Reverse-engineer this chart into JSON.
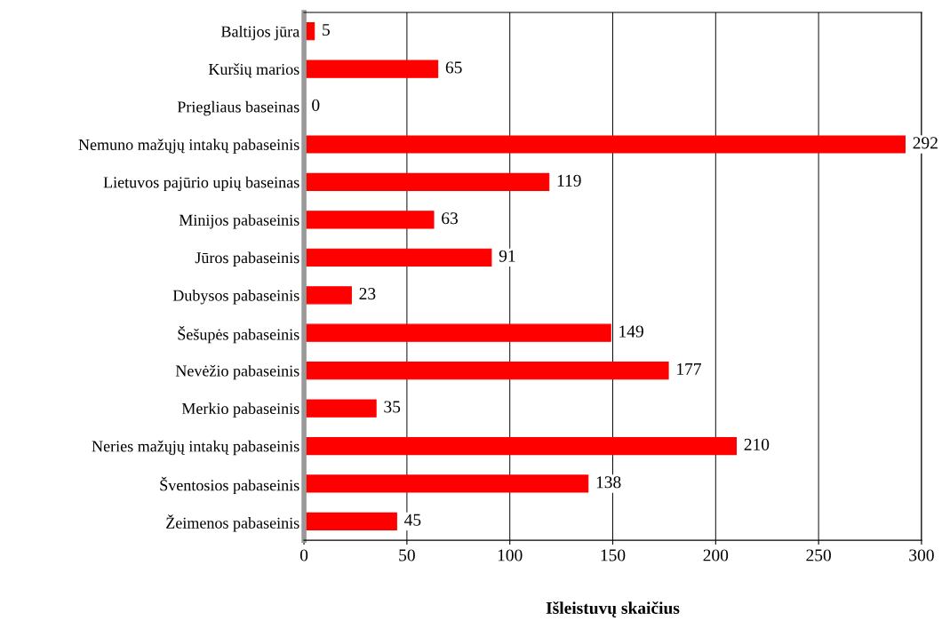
{
  "chart_data": {
    "type": "bar",
    "orientation": "horizontal",
    "xlabel": "Išleistuvų skaičius",
    "categories": [
      "Baltijos jūra",
      "Kuršių marios",
      "Priegliaus baseinas",
      "Nemuno mažųjų intakų pabaseinis",
      "Lietuvos pajūrio upių baseinas",
      "Minijos pabaseinis",
      "Jūros pabaseinis",
      "Dubysos pabaseinis",
      "Šešupės pabaseinis",
      "Nevėžio pabaseinis",
      "Merkio pabaseinis",
      "Neries mažųjų intakų pabaseinis",
      "Šventosios pabaseinis",
      "Žeimenos pabaseinis"
    ],
    "values": [
      5,
      65,
      0,
      292,
      119,
      63,
      91,
      23,
      149,
      177,
      35,
      210,
      138,
      45
    ],
    "color": "#ff0000",
    "xlim": [
      0,
      300
    ],
    "xticks": [
      0,
      50,
      100,
      150,
      200,
      250,
      300
    ],
    "grid": "x",
    "data_labels": true,
    "legend": false
  }
}
